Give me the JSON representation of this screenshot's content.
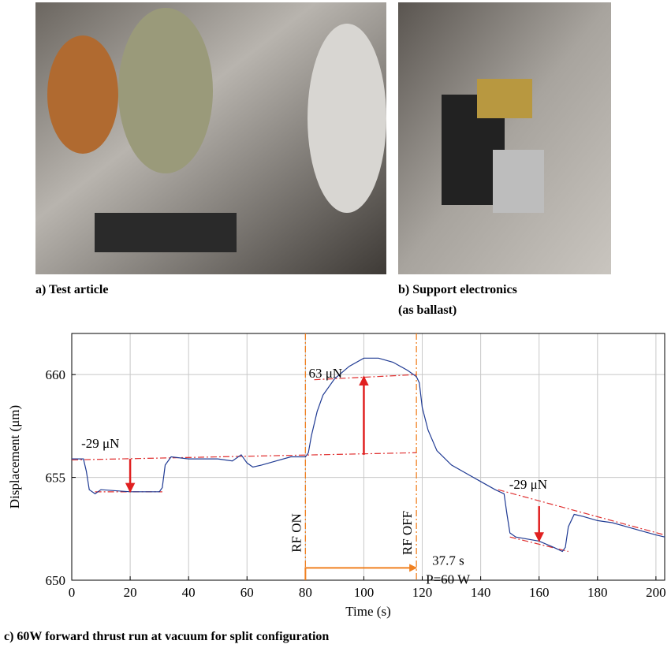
{
  "figures": [
    {
      "caption": "a) Test article"
    },
    {
      "caption": "b) Support electronics (as ballast)"
    }
  ],
  "caption": "c) 60W forward thrust run at vacuum for split configuration",
  "chart_data": {
    "type": "line",
    "xlabel": "Time (s)",
    "ylabel": "Displacement (μm)",
    "xlim": [
      0,
      203
    ],
    "ylim": [
      650,
      662
    ],
    "xticks": [
      0,
      20,
      40,
      60,
      80,
      100,
      120,
      140,
      160,
      180,
      200
    ],
    "yticks": [
      650,
      655,
      660
    ],
    "grid": true,
    "color": "#1f3a93",
    "x": [
      0,
      4,
      5,
      6,
      8,
      10,
      20,
      30,
      31,
      32,
      34,
      40,
      50,
      55,
      58,
      60,
      62,
      65,
      70,
      75,
      80,
      81,
      82,
      84,
      86,
      90,
      95,
      100,
      105,
      110,
      115,
      118,
      119,
      120,
      122,
      125,
      130,
      135,
      140,
      145,
      148,
      149,
      150,
      152,
      160,
      165,
      168,
      169,
      170,
      172,
      175,
      180,
      185,
      190,
      195,
      200,
      203
    ],
    "values": [
      655.9,
      655.9,
      655.3,
      654.4,
      654.2,
      654.4,
      654.3,
      654.3,
      654.5,
      655.6,
      656.0,
      655.9,
      655.9,
      655.8,
      656.1,
      655.7,
      655.5,
      655.6,
      655.8,
      656.0,
      656.0,
      656.2,
      657.0,
      658.2,
      659.0,
      659.8,
      660.4,
      660.8,
      660.8,
      660.6,
      660.2,
      659.9,
      659.6,
      658.4,
      657.3,
      656.3,
      655.6,
      655.2,
      654.8,
      654.4,
      654.2,
      653.2,
      652.3,
      652.1,
      651.9,
      651.6,
      651.4,
      651.6,
      652.6,
      653.2,
      653.1,
      652.9,
      652.8,
      652.6,
      652.4,
      652.2,
      652.1
    ],
    "fit_color": "#e03030",
    "fit_lines": [
      {
        "x": [
          0,
          118
        ],
        "y": [
          655.85,
          656.2
        ]
      },
      {
        "x": [
          83,
          118
        ],
        "y": [
          659.75,
          660.0
        ]
      },
      {
        "x": [
          8,
          31
        ],
        "y": [
          654.3,
          654.3
        ]
      },
      {
        "x": [
          146,
          203
        ],
        "y": [
          654.4,
          652.2
        ]
      },
      {
        "x": [
          150,
          170
        ],
        "y": [
          652.1,
          651.4
        ]
      }
    ],
    "annotations": [
      {
        "text": "-29 μN",
        "x": 20,
        "from": 655.9,
        "to": 654.3
      },
      {
        "text": "63 μN",
        "x": 100,
        "from": 656.1,
        "to": 659.9
      },
      {
        "text": "-29 μN",
        "x": 160,
        "from": 653.6,
        "to": 651.9
      }
    ],
    "marker_color": "#f08020",
    "markers": [
      {
        "x": 80,
        "label": "RF ON"
      },
      {
        "x": 118,
        "label": "RF OFF"
      }
    ],
    "interval": {
      "from": 80,
      "to": 118,
      "y": 650.6,
      "texts": [
        "37.7 s",
        "P=60 W"
      ]
    }
  }
}
